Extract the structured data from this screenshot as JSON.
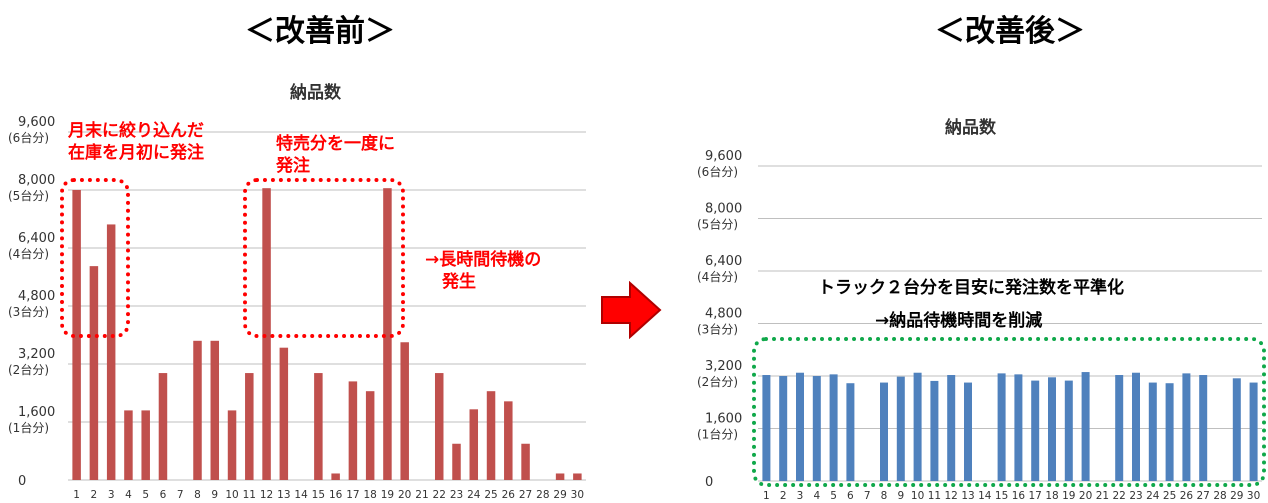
{
  "headings": {
    "before": "＜改善前＞",
    "after": "＜改善後＞"
  },
  "colors": {
    "before_bar": "#c0504d",
    "after_bar": "#4f81bd",
    "annotation": "#ff0000",
    "after_box": "#10a84a",
    "arrow": "#ff0000"
  },
  "arrow_icon": "right-arrow-icon",
  "annotations": {
    "month_end": "月末に絞り込んだ\n在庫を月初に発注",
    "special_sale": "特売分を一度に\n発注",
    "long_wait": "→長時間待機の\n　発生",
    "after_main": "トラック２台分を目安に発注数を平準化",
    "after_sub": "→納品待機時間を削減"
  },
  "chart_data": [
    {
      "type": "bar",
      "title": "納品数",
      "categories": [
        "1",
        "2",
        "3",
        "4",
        "5",
        "6",
        "7",
        "8",
        "9",
        "10",
        "11",
        "12",
        "13",
        "14",
        "15",
        "16",
        "17",
        "18",
        "19",
        "20",
        "21",
        "22",
        "23",
        "24",
        "25",
        "26",
        "27",
        "28",
        "29",
        "30"
      ],
      "values": [
        8000,
        5900,
        7050,
        1920,
        1920,
        2950,
        0,
        3840,
        3840,
        1920,
        2950,
        8050,
        3650,
        0,
        2950,
        180,
        2720,
        2450,
        8050,
        3800,
        0,
        2950,
        1000,
        1950,
        2450,
        2170,
        1000,
        0,
        180,
        180
      ],
      "ylim": [
        0,
        9600
      ],
      "yticks": [
        {
          "value": 9600,
          "label": "9,600",
          "sub": "(6台分)"
        },
        {
          "value": 8000,
          "label": "8,000",
          "sub": "(5台分)"
        },
        {
          "value": 6400,
          "label": "6,400",
          "sub": "(4台分)"
        },
        {
          "value": 4800,
          "label": "4,800",
          "sub": "(3台分)"
        },
        {
          "value": 3200,
          "label": "3,200",
          "sub": "(2台分)"
        },
        {
          "value": 1600,
          "label": "1,600",
          "sub": "(1台分)"
        },
        {
          "value": 0,
          "label": "0",
          "sub": ""
        }
      ],
      "grid": true
    },
    {
      "type": "bar",
      "title": "納品数",
      "categories": [
        "1",
        "2",
        "3",
        "4",
        "5",
        "6",
        "7",
        "8",
        "9",
        "10",
        "11",
        "12",
        "13",
        "14",
        "15",
        "16",
        "17",
        "18",
        "19",
        "20",
        "21",
        "22",
        "23",
        "24",
        "25",
        "26",
        "27",
        "28",
        "29",
        "30"
      ],
      "values": [
        3230,
        3200,
        3300,
        3200,
        3250,
        2980,
        0,
        3000,
        3180,
        3300,
        3050,
        3230,
        3000,
        0,
        3280,
        3250,
        3060,
        3160,
        3060,
        3320,
        0,
        3230,
        3300,
        3000,
        2980,
        3280,
        3230,
        0,
        3130,
        3000
      ],
      "ylim": [
        0,
        9600
      ],
      "yticks": [
        {
          "value": 9600,
          "label": "9,600",
          "sub": "(6台分)"
        },
        {
          "value": 8000,
          "label": "8,000",
          "sub": "(5台分)"
        },
        {
          "value": 6400,
          "label": "6,400",
          "sub": "(4台分)"
        },
        {
          "value": 4800,
          "label": "4,800",
          "sub": "(3台分)"
        },
        {
          "value": 3200,
          "label": "3,200",
          "sub": "(2台分)"
        },
        {
          "value": 1600,
          "label": "1,600",
          "sub": "(1台分)"
        },
        {
          "value": 0,
          "label": "0",
          "sub": ""
        }
      ],
      "grid": true
    }
  ]
}
